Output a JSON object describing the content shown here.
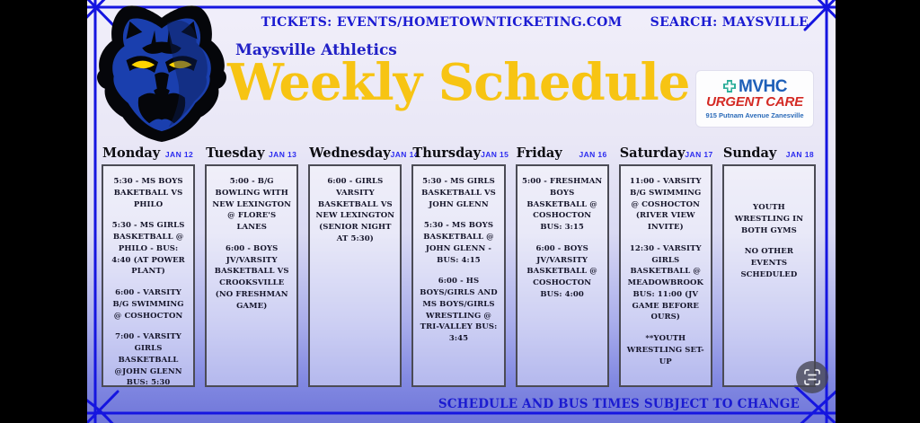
{
  "topbar": {
    "tickets_label": "TICKETS:  EVENTS/HOMETOWNTICKETING.COM",
    "search_label": "SEARCH:  MAYSVILLE"
  },
  "header": {
    "org": "Maysville Athletics",
    "title": "Weekly Schedule"
  },
  "sponsor": {
    "name": "MVHC",
    "subtitle": "URGENT CARE",
    "address": "915 Putnam Avenue Zanesville",
    "cross_icon": "medical-cross-icon",
    "name_color": "#1e5fb8",
    "subtitle_color": "#d42a24"
  },
  "logo": {
    "icon": "panther-logo",
    "team_colors": [
      "#1a3fae",
      "#000000",
      "#ffd400"
    ]
  },
  "footer": {
    "note": "SCHEDULE AND BUS TIMES SUBJECT TO CHANGE"
  },
  "overlay": {
    "scan_icon": "text-scan-icon"
  },
  "colors": {
    "accent_blue": "#1b1bd2",
    "title_gold": "#f7c413",
    "guide_blue": "#1515e0",
    "bg_bottom": "#6f76d8"
  },
  "days": [
    {
      "name": "Monday",
      "date": "JAN 12",
      "events": [
        "5:30 - MS BOYS BAKETBALL VS PHILO",
        "5:30 - MS GIRLS BASKETBALL @ PHILO - BUS: 4:40 (AT POWER PLANT)",
        "6:00 - VARSITY B/G SWIMMING @ COSHOCTON",
        "7:00 - VARSITY GIRLS BASKETBALL @JOHN GLENN BUS: 5:30"
      ]
    },
    {
      "name": "Tuesday",
      "date": "JAN 13",
      "events": [
        "5:00 - B/G BOWLING WITH NEW LEXINGTON @ FLORE'S LANES",
        "6:00 - BOYS JV/VARSITY BASKETBALL VS CROOKSVILLE (NO FRESHMAN GAME)"
      ]
    },
    {
      "name": "Wednesday",
      "date": "JAN 14",
      "events": [
        "6:00 - GIRLS VARSITY BASKETBALL VS NEW LEXINGTON (SENIOR NIGHT AT 5:30)"
      ]
    },
    {
      "name": "Thursday",
      "date": "JAN 15",
      "events": [
        "5:30 - MS GIRLS BASKETBALL VS JOHN GLENN",
        "5:30 - MS BOYS BASKETBALL @ JOHN GLENN - BUS: 4:15",
        "6:00 - HS BOYS/GIRLS AND MS BOYS/GIRLS WRESTLING @ TRI-VALLEY BUS: 3:45"
      ]
    },
    {
      "name": "Friday",
      "date": "JAN 16",
      "events": [
        "5:00 - FRESHMAN BOYS BASKETBALL @ COSHOCTON BUS: 3:15",
        "6:00 - BOYS JV/VARSITY BASKETBALL @ COSHOCTON BUS: 4:00"
      ]
    },
    {
      "name": "Saturday",
      "date": "JAN 17",
      "events": [
        "11:00 - VARSITY B/G SWIMMING @ COSHOCTON (RIVER VIEW INVITE)",
        "12:30 - VARSITY GIRLS BASKETBALL @ MEADOWBROOK BUS: 11:00 (JV GAME BEFORE OURS)",
        "**YOUTH WRESTLING SET-UP"
      ]
    },
    {
      "name": "Sunday",
      "date": "JAN 18",
      "events": [
        "YOUTH WRESTLING IN BOTH GYMS",
        "NO OTHER EVENTS SCHEDULED"
      ]
    }
  ]
}
